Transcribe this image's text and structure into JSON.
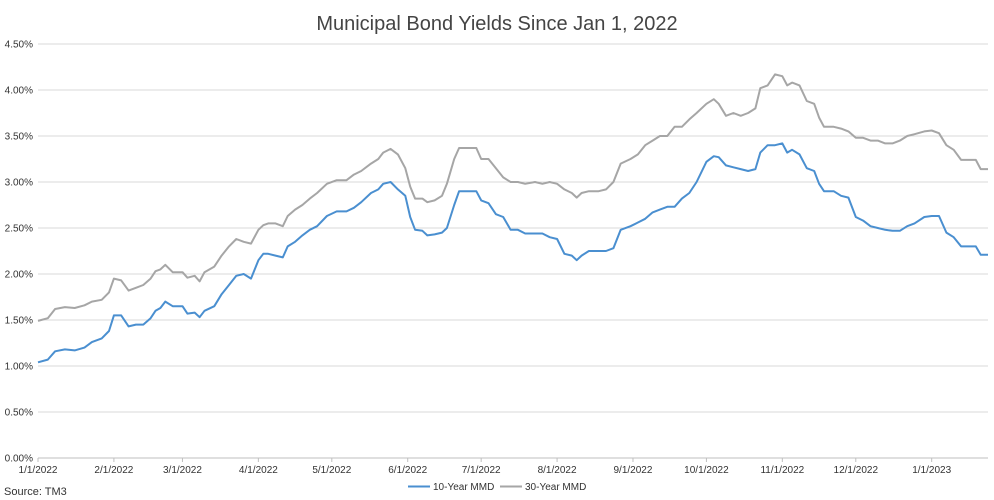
{
  "chart_data": {
    "type": "line",
    "title": "Municipal Bond Yields Since Jan 1, 2022",
    "xlabel": "",
    "ylabel": "",
    "ylim": [
      0,
      4.5
    ],
    "y_ticks": [
      "0.00%",
      "0.50%",
      "1.00%",
      "1.50%",
      "2.00%",
      "2.50%",
      "3.00%",
      "3.50%",
      "4.00%",
      "4.50%"
    ],
    "x_ticks": [
      "1/1/2022",
      "2/1/2022",
      "3/1/2022",
      "4/1/2022",
      "5/1/2022",
      "6/1/2022",
      "7/1/2022",
      "8/1/2022",
      "9/1/2022",
      "10/1/2022",
      "11/1/2022",
      "12/1/2022",
      "1/1/2023"
    ],
    "x_range": [
      "2022-01-01",
      "2023-01-24"
    ],
    "grid": "horizontal",
    "legend_position": "bottom",
    "source": "Source: TM3",
    "series": [
      {
        "name": "10-Year MMD",
        "color": "#4a8fd0",
        "points": [
          [
            "2022-01-01",
            1.04
          ],
          [
            "2022-01-05",
            1.07
          ],
          [
            "2022-01-08",
            1.16
          ],
          [
            "2022-01-12",
            1.18
          ],
          [
            "2022-01-16",
            1.17
          ],
          [
            "2022-01-20",
            1.2
          ],
          [
            "2022-01-23",
            1.26
          ],
          [
            "2022-01-27",
            1.3
          ],
          [
            "2022-01-30",
            1.38
          ],
          [
            "2022-02-01",
            1.55
          ],
          [
            "2022-02-04",
            1.55
          ],
          [
            "2022-02-07",
            1.43
          ],
          [
            "2022-02-10",
            1.45
          ],
          [
            "2022-02-13",
            1.45
          ],
          [
            "2022-02-16",
            1.52
          ],
          [
            "2022-02-18",
            1.6
          ],
          [
            "2022-02-20",
            1.63
          ],
          [
            "2022-02-22",
            1.7
          ],
          [
            "2022-02-25",
            1.65
          ],
          [
            "2022-03-01",
            1.65
          ],
          [
            "2022-03-03",
            1.57
          ],
          [
            "2022-03-06",
            1.58
          ],
          [
            "2022-03-08",
            1.53
          ],
          [
            "2022-03-10",
            1.6
          ],
          [
            "2022-03-14",
            1.65
          ],
          [
            "2022-03-17",
            1.78
          ],
          [
            "2022-03-20",
            1.88
          ],
          [
            "2022-03-23",
            1.98
          ],
          [
            "2022-03-26",
            2.0
          ],
          [
            "2022-03-29",
            1.95
          ],
          [
            "2022-04-01",
            2.15
          ],
          [
            "2022-04-03",
            2.22
          ],
          [
            "2022-04-05",
            2.22
          ],
          [
            "2022-04-08",
            2.2
          ],
          [
            "2022-04-11",
            2.18
          ],
          [
            "2022-04-13",
            2.3
          ],
          [
            "2022-04-16",
            2.35
          ],
          [
            "2022-04-19",
            2.42
          ],
          [
            "2022-04-22",
            2.48
          ],
          [
            "2022-04-25",
            2.52
          ],
          [
            "2022-04-29",
            2.63
          ],
          [
            "2022-05-03",
            2.68
          ],
          [
            "2022-05-07",
            2.68
          ],
          [
            "2022-05-10",
            2.72
          ],
          [
            "2022-05-13",
            2.78
          ],
          [
            "2022-05-17",
            2.88
          ],
          [
            "2022-05-20",
            2.92
          ],
          [
            "2022-05-22",
            2.98
          ],
          [
            "2022-05-25",
            3.0
          ],
          [
            "2022-05-28",
            2.92
          ],
          [
            "2022-05-31",
            2.85
          ],
          [
            "2022-06-02",
            2.62
          ],
          [
            "2022-06-04",
            2.48
          ],
          [
            "2022-06-07",
            2.47
          ],
          [
            "2022-06-09",
            2.42
          ],
          [
            "2022-06-12",
            2.43
          ],
          [
            "2022-06-15",
            2.45
          ],
          [
            "2022-06-17",
            2.5
          ],
          [
            "2022-06-20",
            2.75
          ],
          [
            "2022-06-22",
            2.9
          ],
          [
            "2022-06-25",
            2.9
          ],
          [
            "2022-06-29",
            2.9
          ],
          [
            "2022-07-01",
            2.8
          ],
          [
            "2022-07-04",
            2.77
          ],
          [
            "2022-07-07",
            2.65
          ],
          [
            "2022-07-10",
            2.62
          ],
          [
            "2022-07-13",
            2.48
          ],
          [
            "2022-07-16",
            2.48
          ],
          [
            "2022-07-19",
            2.44
          ],
          [
            "2022-07-23",
            2.44
          ],
          [
            "2022-07-26",
            2.44
          ],
          [
            "2022-07-29",
            2.4
          ],
          [
            "2022-08-01",
            2.38
          ],
          [
            "2022-08-04",
            2.22
          ],
          [
            "2022-08-07",
            2.2
          ],
          [
            "2022-08-09",
            2.15
          ],
          [
            "2022-08-11",
            2.2
          ],
          [
            "2022-08-14",
            2.25
          ],
          [
            "2022-08-18",
            2.25
          ],
          [
            "2022-08-21",
            2.25
          ],
          [
            "2022-08-24",
            2.28
          ],
          [
            "2022-08-27",
            2.48
          ],
          [
            "2022-08-31",
            2.52
          ],
          [
            "2022-09-03",
            2.56
          ],
          [
            "2022-09-06",
            2.6
          ],
          [
            "2022-09-09",
            2.67
          ],
          [
            "2022-09-12",
            2.7
          ],
          [
            "2022-09-15",
            2.73
          ],
          [
            "2022-09-18",
            2.73
          ],
          [
            "2022-09-21",
            2.82
          ],
          [
            "2022-09-24",
            2.88
          ],
          [
            "2022-09-27",
            3.0
          ],
          [
            "2022-10-01",
            3.22
          ],
          [
            "2022-10-04",
            3.28
          ],
          [
            "2022-10-06",
            3.27
          ],
          [
            "2022-10-09",
            3.18
          ],
          [
            "2022-10-12",
            3.16
          ],
          [
            "2022-10-15",
            3.14
          ],
          [
            "2022-10-18",
            3.12
          ],
          [
            "2022-10-21",
            3.14
          ],
          [
            "2022-10-23",
            3.32
          ],
          [
            "2022-10-26",
            3.4
          ],
          [
            "2022-10-29",
            3.4
          ],
          [
            "2022-11-01",
            3.42
          ],
          [
            "2022-11-03",
            3.32
          ],
          [
            "2022-11-05",
            3.35
          ],
          [
            "2022-11-08",
            3.3
          ],
          [
            "2022-11-11",
            3.15
          ],
          [
            "2022-11-14",
            3.12
          ],
          [
            "2022-11-16",
            2.98
          ],
          [
            "2022-11-18",
            2.9
          ],
          [
            "2022-11-22",
            2.9
          ],
          [
            "2022-11-25",
            2.85
          ],
          [
            "2022-11-28",
            2.83
          ],
          [
            "2022-12-01",
            2.62
          ],
          [
            "2022-12-04",
            2.58
          ],
          [
            "2022-12-07",
            2.52
          ],
          [
            "2022-12-10",
            2.5
          ],
          [
            "2022-12-13",
            2.48
          ],
          [
            "2022-12-16",
            2.47
          ],
          [
            "2022-12-19",
            2.47
          ],
          [
            "2022-12-22",
            2.52
          ],
          [
            "2022-12-25",
            2.55
          ],
          [
            "2022-12-29",
            2.62
          ],
          [
            "2023-01-01",
            2.63
          ],
          [
            "2023-01-04",
            2.63
          ],
          [
            "2023-01-07",
            2.45
          ],
          [
            "2023-01-10",
            2.4
          ],
          [
            "2023-01-13",
            2.3
          ],
          [
            "2023-01-16",
            2.3
          ],
          [
            "2023-01-19",
            2.3
          ],
          [
            "2023-01-21",
            2.21
          ],
          [
            "2023-01-24",
            2.21
          ]
        ]
      },
      {
        "name": "30-Year MMD",
        "color": "#a6a6a6",
        "points": [
          [
            "2022-01-01",
            1.49
          ],
          [
            "2022-01-05",
            1.52
          ],
          [
            "2022-01-08",
            1.62
          ],
          [
            "2022-01-12",
            1.64
          ],
          [
            "2022-01-16",
            1.63
          ],
          [
            "2022-01-20",
            1.66
          ],
          [
            "2022-01-23",
            1.7
          ],
          [
            "2022-01-27",
            1.72
          ],
          [
            "2022-01-30",
            1.8
          ],
          [
            "2022-02-01",
            1.95
          ],
          [
            "2022-02-04",
            1.93
          ],
          [
            "2022-02-07",
            1.82
          ],
          [
            "2022-02-10",
            1.85
          ],
          [
            "2022-02-13",
            1.88
          ],
          [
            "2022-02-16",
            1.95
          ],
          [
            "2022-02-18",
            2.03
          ],
          [
            "2022-02-20",
            2.05
          ],
          [
            "2022-02-22",
            2.1
          ],
          [
            "2022-02-25",
            2.02
          ],
          [
            "2022-03-01",
            2.02
          ],
          [
            "2022-03-03",
            1.96
          ],
          [
            "2022-03-06",
            1.98
          ],
          [
            "2022-03-08",
            1.92
          ],
          [
            "2022-03-10",
            2.02
          ],
          [
            "2022-03-14",
            2.08
          ],
          [
            "2022-03-17",
            2.2
          ],
          [
            "2022-03-20",
            2.3
          ],
          [
            "2022-03-23",
            2.38
          ],
          [
            "2022-03-26",
            2.35
          ],
          [
            "2022-03-29",
            2.33
          ],
          [
            "2022-04-01",
            2.48
          ],
          [
            "2022-04-03",
            2.53
          ],
          [
            "2022-04-05",
            2.55
          ],
          [
            "2022-04-08",
            2.55
          ],
          [
            "2022-04-11",
            2.52
          ],
          [
            "2022-04-13",
            2.63
          ],
          [
            "2022-04-16",
            2.7
          ],
          [
            "2022-04-19",
            2.75
          ],
          [
            "2022-04-22",
            2.82
          ],
          [
            "2022-04-25",
            2.88
          ],
          [
            "2022-04-29",
            2.98
          ],
          [
            "2022-05-03",
            3.02
          ],
          [
            "2022-05-07",
            3.02
          ],
          [
            "2022-05-10",
            3.08
          ],
          [
            "2022-05-13",
            3.12
          ],
          [
            "2022-05-17",
            3.2
          ],
          [
            "2022-05-20",
            3.25
          ],
          [
            "2022-05-22",
            3.32
          ],
          [
            "2022-05-25",
            3.36
          ],
          [
            "2022-05-28",
            3.3
          ],
          [
            "2022-05-31",
            3.15
          ],
          [
            "2022-06-02",
            2.95
          ],
          [
            "2022-06-04",
            2.82
          ],
          [
            "2022-06-07",
            2.82
          ],
          [
            "2022-06-09",
            2.78
          ],
          [
            "2022-06-12",
            2.8
          ],
          [
            "2022-06-15",
            2.85
          ],
          [
            "2022-06-17",
            2.98
          ],
          [
            "2022-06-20",
            3.25
          ],
          [
            "2022-06-22",
            3.37
          ],
          [
            "2022-06-25",
            3.37
          ],
          [
            "2022-06-29",
            3.37
          ],
          [
            "2022-07-01",
            3.25
          ],
          [
            "2022-07-04",
            3.25
          ],
          [
            "2022-07-07",
            3.15
          ],
          [
            "2022-07-10",
            3.05
          ],
          [
            "2022-07-13",
            3.0
          ],
          [
            "2022-07-16",
            3.0
          ],
          [
            "2022-07-19",
            2.98
          ],
          [
            "2022-07-23",
            3.0
          ],
          [
            "2022-07-26",
            2.98
          ],
          [
            "2022-07-29",
            3.0
          ],
          [
            "2022-08-01",
            2.98
          ],
          [
            "2022-08-04",
            2.92
          ],
          [
            "2022-08-07",
            2.88
          ],
          [
            "2022-08-09",
            2.83
          ],
          [
            "2022-08-11",
            2.88
          ],
          [
            "2022-08-14",
            2.9
          ],
          [
            "2022-08-18",
            2.9
          ],
          [
            "2022-08-21",
            2.92
          ],
          [
            "2022-08-24",
            3.0
          ],
          [
            "2022-08-27",
            3.2
          ],
          [
            "2022-08-31",
            3.25
          ],
          [
            "2022-09-03",
            3.3
          ],
          [
            "2022-09-06",
            3.4
          ],
          [
            "2022-09-09",
            3.45
          ],
          [
            "2022-09-12",
            3.5
          ],
          [
            "2022-09-15",
            3.5
          ],
          [
            "2022-09-18",
            3.6
          ],
          [
            "2022-09-21",
            3.6
          ],
          [
            "2022-09-24",
            3.68
          ],
          [
            "2022-09-27",
            3.75
          ],
          [
            "2022-10-01",
            3.85
          ],
          [
            "2022-10-04",
            3.9
          ],
          [
            "2022-10-06",
            3.85
          ],
          [
            "2022-10-09",
            3.72
          ],
          [
            "2022-10-12",
            3.75
          ],
          [
            "2022-10-15",
            3.72
          ],
          [
            "2022-10-18",
            3.75
          ],
          [
            "2022-10-21",
            3.8
          ],
          [
            "2022-10-23",
            4.02
          ],
          [
            "2022-10-26",
            4.05
          ],
          [
            "2022-10-29",
            4.17
          ],
          [
            "2022-11-01",
            4.15
          ],
          [
            "2022-11-03",
            4.05
          ],
          [
            "2022-11-05",
            4.08
          ],
          [
            "2022-11-08",
            4.05
          ],
          [
            "2022-11-11",
            3.88
          ],
          [
            "2022-11-14",
            3.85
          ],
          [
            "2022-11-16",
            3.7
          ],
          [
            "2022-11-18",
            3.6
          ],
          [
            "2022-11-22",
            3.6
          ],
          [
            "2022-11-25",
            3.58
          ],
          [
            "2022-11-28",
            3.55
          ],
          [
            "2022-12-01",
            3.48
          ],
          [
            "2022-12-04",
            3.48
          ],
          [
            "2022-12-07",
            3.45
          ],
          [
            "2022-12-10",
            3.45
          ],
          [
            "2022-12-13",
            3.42
          ],
          [
            "2022-12-16",
            3.42
          ],
          [
            "2022-12-19",
            3.45
          ],
          [
            "2022-12-22",
            3.5
          ],
          [
            "2022-12-25",
            3.52
          ],
          [
            "2022-12-29",
            3.55
          ],
          [
            "2023-01-01",
            3.56
          ],
          [
            "2023-01-04",
            3.53
          ],
          [
            "2023-01-07",
            3.4
          ],
          [
            "2023-01-10",
            3.35
          ],
          [
            "2023-01-13",
            3.24
          ],
          [
            "2023-01-16",
            3.24
          ],
          [
            "2023-01-19",
            3.24
          ],
          [
            "2023-01-21",
            3.14
          ],
          [
            "2023-01-24",
            3.14
          ]
        ]
      }
    ]
  }
}
